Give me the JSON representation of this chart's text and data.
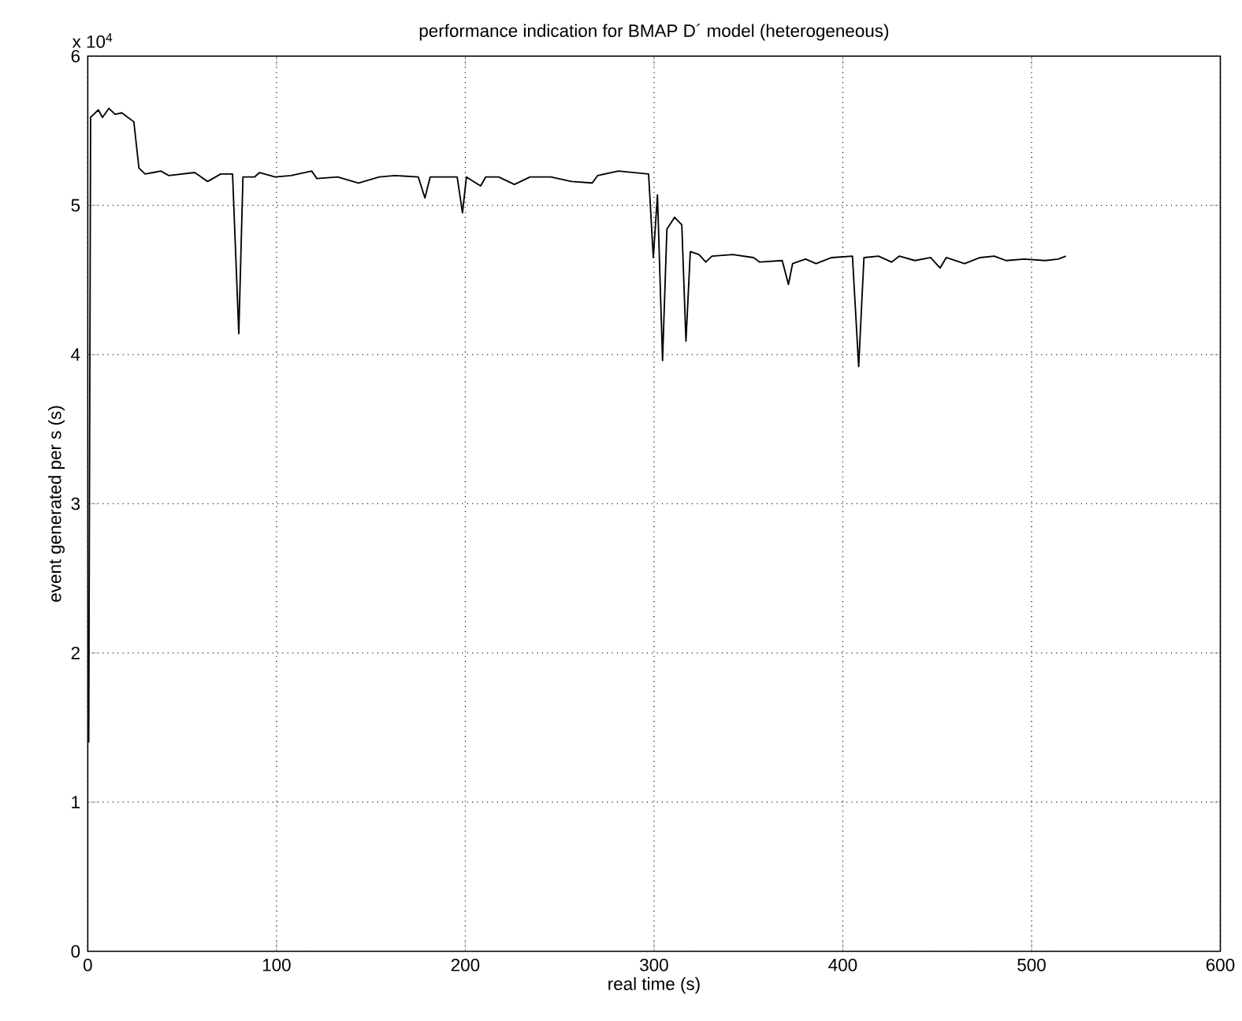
{
  "chart_data": {
    "type": "line",
    "title": "performance indication for BMAP D´ model (heterogeneous)",
    "xlabel": "real time (s)",
    "ylabel": "event generated per s (s)",
    "annotations": [
      "x 10$^{4}$"
    ],
    "x": [
      0.5,
      1.5,
      5.6,
      7.8,
      11.2,
      14.5,
      18.0,
      24.4,
      27.1,
      30.4,
      34.6,
      38.7,
      42.8,
      49.7,
      56.6,
      63.5,
      70.4,
      76.7,
      80.0,
      82.2,
      88.3,
      91.0,
      99.3,
      107.6,
      118.6,
      121.4,
      132.4,
      143.4,
      154.4,
      162.6,
      175.1,
      178.6,
      181.4,
      190.2,
      195.7,
      198.5,
      200.6,
      208.1,
      210.8,
      217.7,
      226.0,
      234.3,
      245.3,
      256.3,
      267.3,
      270.1,
      281.1,
      297.1,
      299.6,
      301.8,
      304.5,
      306.8,
      310.9,
      314.7,
      316.9,
      319.2,
      323.8,
      327.4,
      330.7,
      341.7,
      352.7,
      356.0,
      367.9,
      371.2,
      373.4,
      380.3,
      385.8,
      394.1,
      405.1,
      408.4,
      411.2,
      418.9,
      425.8,
      430.0,
      438.2,
      446.5,
      451.5,
      454.8,
      464.5,
      472.7,
      480.2,
      486.5,
      496.2,
      507.2,
      514.1,
      518.2
    ],
    "values": [
      1.4,
      5.59,
      5.64,
      5.59,
      5.65,
      5.61,
      5.62,
      5.56,
      5.25,
      5.21,
      5.22,
      5.23,
      5.2,
      5.21,
      5.22,
      5.16,
      5.21,
      5.21,
      4.14,
      5.19,
      5.19,
      5.22,
      5.19,
      5.2,
      5.23,
      5.18,
      5.19,
      5.15,
      5.19,
      5.2,
      5.19,
      5.05,
      5.19,
      5.19,
      5.19,
      4.95,
      5.19,
      5.13,
      5.19,
      5.19,
      5.14,
      5.19,
      5.19,
      5.16,
      5.15,
      5.2,
      5.23,
      5.21,
      4.65,
      5.07,
      3.96,
      4.84,
      4.92,
      4.87,
      4.09,
      4.69,
      4.67,
      4.62,
      4.66,
      4.67,
      4.65,
      4.62,
      4.63,
      4.47,
      4.61,
      4.64,
      4.61,
      4.65,
      4.66,
      3.92,
      4.65,
      4.66,
      4.62,
      4.66,
      4.63,
      4.65,
      4.58,
      4.65,
      4.61,
      4.65,
      4.66,
      4.63,
      4.64,
      4.63,
      4.64,
      4.66
    ],
    "color": "#000000",
    "line_style": "solid",
    "marker": "none",
    "grid": true,
    "xlim": [
      0,
      600
    ],
    "xticks": [
      0,
      100,
      200,
      300,
      400,
      500,
      600
    ],
    "ylim": [
      0,
      6
    ],
    "yticks": [
      0,
      1,
      2,
      3,
      4,
      5,
      6
    ]
  }
}
